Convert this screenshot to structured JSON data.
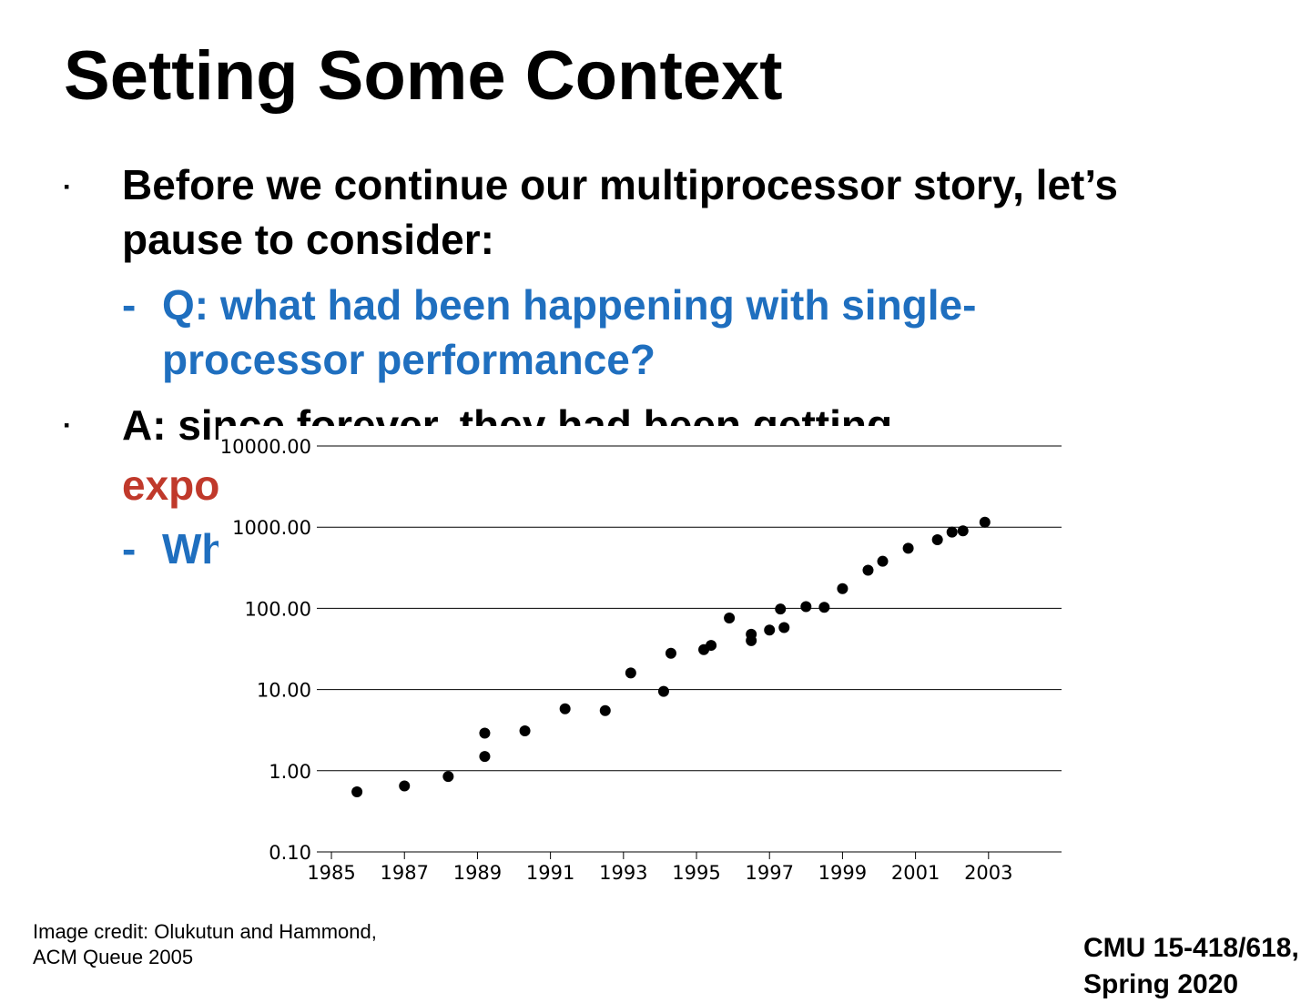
{
  "slide": {
    "title": "Setting Some Context",
    "bullet_marker": "▪",
    "dash_marker": "-",
    "b1_line1": "Before we continue our multiprocessor story, let’s",
    "b1_line2": "pause to consider:",
    "s1_line1": "Q: what had been happening with single-",
    "s1_line2": "processor performance?",
    "b2_line1": "A: since forever, they had been getting",
    "b2_line2": "expo",
    "s2_line1": "Wh",
    "credit_line1": "Image credit: Olukutun and Hammond,",
    "credit_line2": "ACM Queue 2005",
    "footer_line1": "CMU 15-418/618,",
    "footer_line2": "Spring 2020"
  },
  "colors": {
    "blue": "#1f6fbf",
    "red": "#c0392b",
    "text": "#000000"
  },
  "chart_data": {
    "type": "scatter",
    "title": "",
    "xlabel": "",
    "ylabel": "",
    "yscale": "log",
    "ylim": [
      0.1,
      10000
    ],
    "xlim": [
      1984.6,
      2005
    ],
    "yticks": [
      "10000.00",
      "1000.00",
      "100.00",
      "10.00",
      "1.00",
      "0.10"
    ],
    "ytick_values": [
      10000,
      1000,
      100,
      10,
      1,
      0.1
    ],
    "xticks": [
      "1985",
      "1987",
      "1989",
      "1991",
      "1993",
      "1995",
      "1997",
      "1999",
      "2001",
      "2003"
    ],
    "xtick_values": [
      1985,
      1987,
      1989,
      1991,
      1993,
      1995,
      1997,
      1999,
      2001,
      2003
    ],
    "grid": "horizontal",
    "points": [
      {
        "x": 1985.7,
        "y": 0.55
      },
      {
        "x": 1987.0,
        "y": 0.65
      },
      {
        "x": 1988.2,
        "y": 0.85
      },
      {
        "x": 1989.2,
        "y": 1.5
      },
      {
        "x": 1989.2,
        "y": 2.9
      },
      {
        "x": 1990.3,
        "y": 3.1
      },
      {
        "x": 1991.4,
        "y": 5.8
      },
      {
        "x": 1992.5,
        "y": 5.5
      },
      {
        "x": 1993.2,
        "y": 16
      },
      {
        "x": 1994.1,
        "y": 9.5
      },
      {
        "x": 1994.3,
        "y": 28
      },
      {
        "x": 1995.2,
        "y": 31
      },
      {
        "x": 1995.4,
        "y": 35
      },
      {
        "x": 1995.9,
        "y": 76
      },
      {
        "x": 1996.5,
        "y": 48
      },
      {
        "x": 1996.5,
        "y": 40
      },
      {
        "x": 1997.0,
        "y": 54
      },
      {
        "x": 1997.3,
        "y": 98
      },
      {
        "x": 1997.4,
        "y": 58
      },
      {
        "x": 1998.0,
        "y": 105
      },
      {
        "x": 1998.5,
        "y": 103
      },
      {
        "x": 1999.0,
        "y": 175
      },
      {
        "x": 1999.7,
        "y": 295
      },
      {
        "x": 2000.1,
        "y": 380
      },
      {
        "x": 2000.8,
        "y": 550
      },
      {
        "x": 2001.6,
        "y": 700
      },
      {
        "x": 2002.0,
        "y": 870
      },
      {
        "x": 2002.3,
        "y": 900
      },
      {
        "x": 2002.9,
        "y": 1150
      }
    ]
  }
}
